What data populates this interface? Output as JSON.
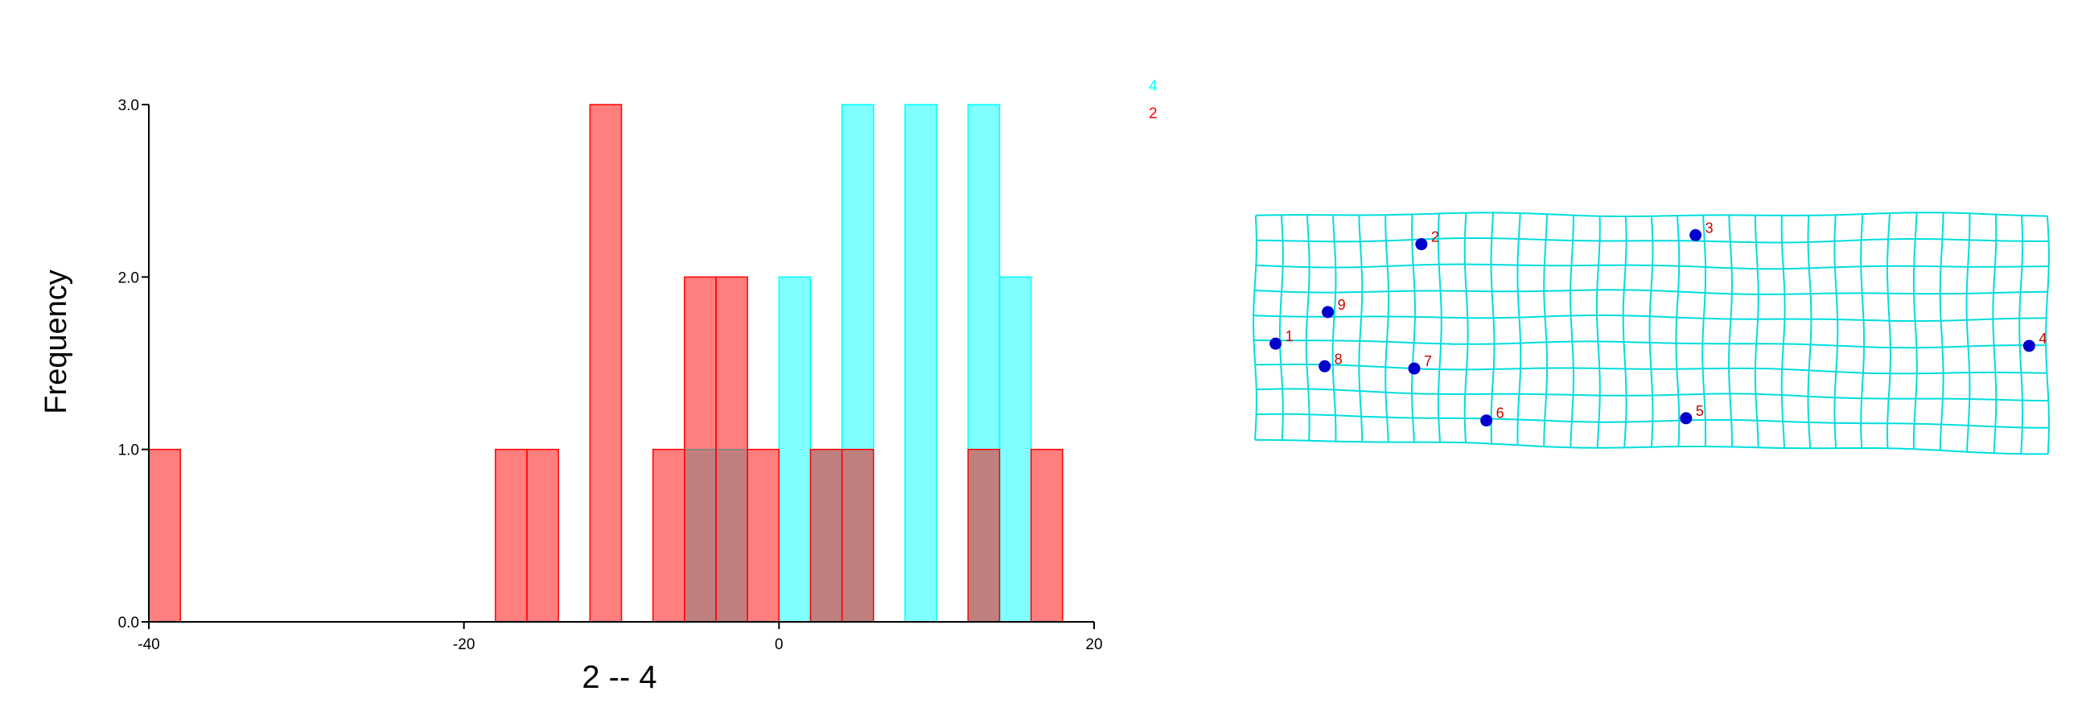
{
  "chart_data": [
    {
      "type": "bar",
      "subtype": "overlaid-histogram",
      "xlabel": "2 -- 4",
      "ylabel": "Frequency",
      "xlim": [
        -40,
        20
      ],
      "ylim": [
        0,
        3
      ],
      "x_ticks": [
        {
          "value": -40,
          "label": "-40"
        },
        {
          "value": -20,
          "label": "-20"
        },
        {
          "value": 0,
          "label": "0"
        },
        {
          "value": 20,
          "label": "20"
        }
      ],
      "y_ticks": [
        {
          "value": 0,
          "label": "0.0"
        },
        {
          "value": 1,
          "label": "1.0"
        },
        {
          "value": 2,
          "label": "2.0"
        },
        {
          "value": 3,
          "label": "3.0"
        }
      ],
      "bin_width": 2,
      "legend_position": "top-right",
      "series": [
        {
          "name": "4",
          "color": "#00FFFF",
          "bin_starts": [
            -6,
            -4,
            0,
            2,
            4,
            8,
            12,
            14
          ],
          "counts": [
            1,
            1,
            2,
            1,
            3,
            3,
            3,
            2
          ]
        },
        {
          "name": "2",
          "color": "#FF0000",
          "bin_starts": [
            -40,
            -18,
            -16,
            -12,
            -8,
            -6,
            -4,
            -2,
            2,
            4,
            12,
            16
          ],
          "counts": [
            1,
            1,
            1,
            3,
            1,
            2,
            2,
            1,
            1,
            1,
            1,
            1
          ]
        }
      ]
    },
    {
      "type": "scatter",
      "subtype": "landmark-deformation-grid",
      "grid_color": "#00DDDD",
      "point_color": "#0000CC",
      "label_color": "#CC0000",
      "grid_columns": 30,
      "grid_rows": 9,
      "grid_corners": {
        "top_left": [
          0,
          1.0
        ],
        "top_right": [
          1,
          1.0
        ],
        "bottom_left": [
          0,
          0.0
        ],
        "bottom_right": [
          1,
          -0.05
        ]
      },
      "landmarks": [
        {
          "label": "1",
          "x": 0.026,
          "y": 0.43
        },
        {
          "label": "2",
          "x": 0.21,
          "y": 0.87
        },
        {
          "label": "3",
          "x": 0.556,
          "y": 0.91
        },
        {
          "label": "4",
          "x": 0.977,
          "y": 0.42
        },
        {
          "label": "5",
          "x": 0.544,
          "y": 0.1
        },
        {
          "label": "6",
          "x": 0.292,
          "y": 0.09
        },
        {
          "label": "7",
          "x": 0.201,
          "y": 0.32
        },
        {
          "label": "8",
          "x": 0.088,
          "y": 0.33
        },
        {
          "label": "9",
          "x": 0.092,
          "y": 0.57
        }
      ]
    }
  ]
}
